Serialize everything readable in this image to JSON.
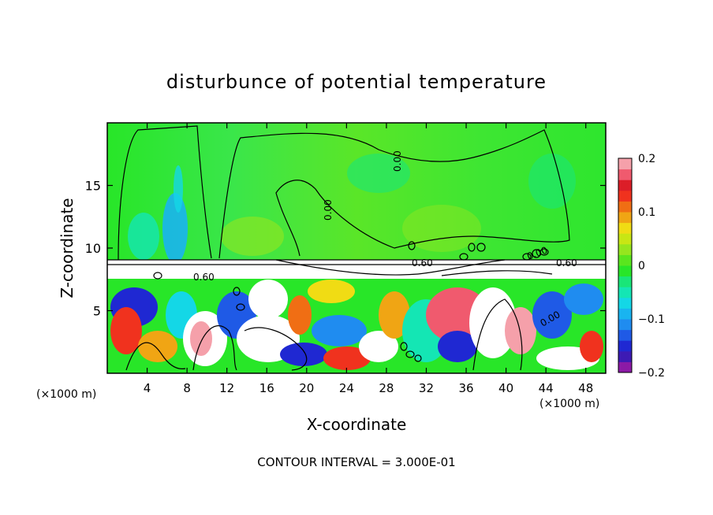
{
  "chart_data": {
    "type": "heatmap",
    "title": "disturbunce of potential temperature",
    "xlabel": "X-coordinate",
    "ylabel": "Z-coordinate",
    "x_unit_left": "(×1000 m)",
    "x_unit_right": "(×1000 m)",
    "footer": "CONTOUR INTERVAL = 3.000E-01",
    "xlim": [
      0,
      50
    ],
    "ylim": [
      0,
      20
    ],
    "xticks": [
      4,
      8,
      12,
      16,
      20,
      24,
      28,
      32,
      36,
      40,
      44,
      48
    ],
    "yticks": [
      5,
      10,
      15
    ],
    "colorbar": {
      "range": [
        -0.2,
        0.2
      ],
      "ticks": [
        {
          "value": 0.2,
          "label": "0.2"
        },
        {
          "value": 0.1,
          "label": "0.1"
        },
        {
          "value": 0,
          "label": "0"
        },
        {
          "value": -0.1,
          "label": "−0.1"
        },
        {
          "value": -0.2,
          "label": "−0.2"
        }
      ],
      "colors": [
        "#8c1aa6",
        "#3d1ab4",
        "#1f28d2",
        "#1f5ae6",
        "#1f8cf0",
        "#19b4f0",
        "#14d7e6",
        "#14e6b4",
        "#19e678",
        "#28e628",
        "#5ae61e",
        "#96e61e",
        "#c8e614",
        "#f0dc14",
        "#f0a514",
        "#f06e14",
        "#f0321e",
        "#dc1e28",
        "#f05a6e",
        "#f5a0aa"
      ]
    },
    "contour_labels": [
      "0.00",
      "0.00",
      "0.00",
      "0.60",
      "0.60",
      "0.60",
      "0.00"
    ]
  }
}
